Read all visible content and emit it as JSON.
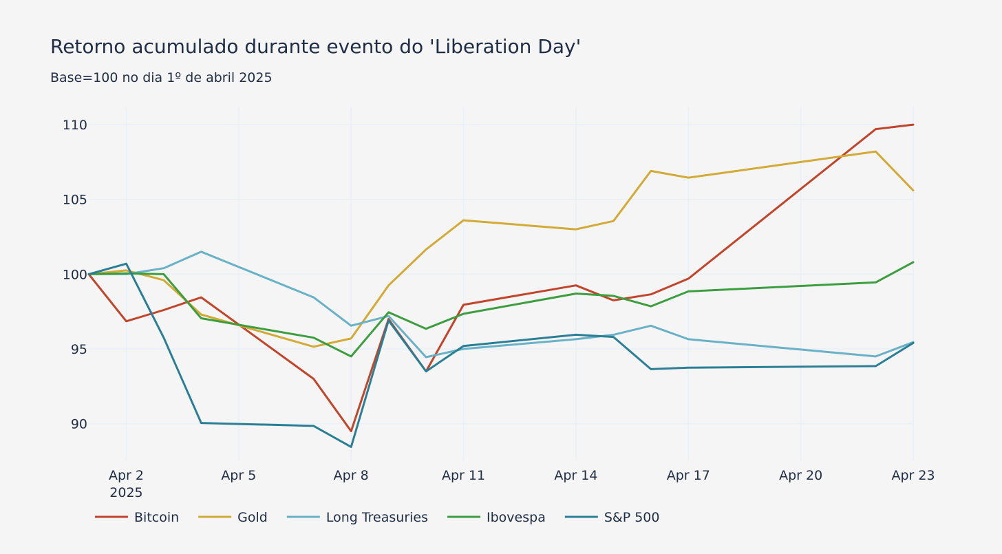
{
  "page": {
    "background": "#f5f5f5",
    "grid_color": "#eaf0f8",
    "text_color": "#1f2d45"
  },
  "chart_data": {
    "type": "line",
    "title": "Retorno acumulado durante evento do 'Liberation Day'",
    "subtitle": "Base=100 no dia 1º de abril 2025",
    "xlabel": "",
    "ylabel": "",
    "x_axis": {
      "type": "date",
      "range": [
        "2025-04-01",
        "2025-04-23"
      ],
      "ticks": [
        {
          "date": "2025-04-02",
          "label": "Apr 2",
          "sublabel": "2025"
        },
        {
          "date": "2025-04-05",
          "label": "Apr 5"
        },
        {
          "date": "2025-04-08",
          "label": "Apr 8"
        },
        {
          "date": "2025-04-11",
          "label": "Apr 11"
        },
        {
          "date": "2025-04-14",
          "label": "Apr 14"
        },
        {
          "date": "2025-04-17",
          "label": "Apr 17"
        },
        {
          "date": "2025-04-20",
          "label": "Apr 20"
        },
        {
          "date": "2025-04-23",
          "label": "Apr 23"
        }
      ]
    },
    "y_axis": {
      "range": [
        87.5,
        111.2
      ],
      "ticks": [
        90,
        95,
        100,
        105,
        110
      ]
    },
    "grid": true,
    "legend": "bottom-left",
    "series": [
      {
        "name": "Bitcoin",
        "color": "#c0452b",
        "points": [
          [
            "2025-04-01",
            100.0
          ],
          [
            "2025-04-02",
            96.85
          ],
          [
            "2025-04-03",
            97.6
          ],
          [
            "2025-04-04",
            98.45
          ],
          [
            "2025-04-07",
            93.0
          ],
          [
            "2025-04-08",
            89.5
          ],
          [
            "2025-04-09",
            97.0
          ],
          [
            "2025-04-10",
            93.5
          ],
          [
            "2025-04-11",
            97.95
          ],
          [
            "2025-04-14",
            99.25
          ],
          [
            "2025-04-15",
            98.25
          ],
          [
            "2025-04-16",
            98.65
          ],
          [
            "2025-04-17",
            99.7
          ],
          [
            "2025-04-22",
            109.7
          ],
          [
            "2025-04-23",
            110.0
          ]
        ]
      },
      {
        "name": "Gold",
        "color": "#d2aa36",
        "points": [
          [
            "2025-04-01",
            100.0
          ],
          [
            "2025-04-02",
            100.25
          ],
          [
            "2025-04-03",
            99.6
          ],
          [
            "2025-04-04",
            97.3
          ],
          [
            "2025-04-07",
            95.15
          ],
          [
            "2025-04-08",
            95.7
          ],
          [
            "2025-04-09",
            99.25
          ],
          [
            "2025-04-10",
            101.65
          ],
          [
            "2025-04-11",
            103.6
          ],
          [
            "2025-04-14",
            103.0
          ],
          [
            "2025-04-15",
            103.55
          ],
          [
            "2025-04-16",
            106.9
          ],
          [
            "2025-04-17",
            106.45
          ],
          [
            "2025-04-22",
            108.2
          ],
          [
            "2025-04-23",
            105.6
          ]
        ]
      },
      {
        "name": "Long Treasuries",
        "color": "#68b1c6",
        "points": [
          [
            "2025-04-01",
            100.0
          ],
          [
            "2025-04-02",
            100.0
          ],
          [
            "2025-04-03",
            100.4
          ],
          [
            "2025-04-04",
            101.5
          ],
          [
            "2025-04-07",
            98.45
          ],
          [
            "2025-04-08",
            96.55
          ],
          [
            "2025-04-09",
            97.2
          ],
          [
            "2025-04-10",
            94.45
          ],
          [
            "2025-04-11",
            95.0
          ],
          [
            "2025-04-14",
            95.65
          ],
          [
            "2025-04-15",
            95.95
          ],
          [
            "2025-04-16",
            96.55
          ],
          [
            "2025-04-17",
            95.65
          ],
          [
            "2025-04-22",
            94.5
          ],
          [
            "2025-04-23",
            95.45
          ]
        ]
      },
      {
        "name": "Ibovespa",
        "color": "#3d9e3f",
        "points": [
          [
            "2025-04-01",
            100.0
          ],
          [
            "2025-04-02",
            100.05
          ],
          [
            "2025-04-03",
            100.0
          ],
          [
            "2025-04-04",
            97.05
          ],
          [
            "2025-04-07",
            95.75
          ],
          [
            "2025-04-08",
            94.5
          ],
          [
            "2025-04-09",
            97.45
          ],
          [
            "2025-04-10",
            96.35
          ],
          [
            "2025-04-11",
            97.35
          ],
          [
            "2025-04-14",
            98.7
          ],
          [
            "2025-04-15",
            98.55
          ],
          [
            "2025-04-16",
            97.85
          ],
          [
            "2025-04-17",
            98.85
          ],
          [
            "2025-04-22",
            99.45
          ],
          [
            "2025-04-23",
            100.8
          ]
        ]
      },
      {
        "name": "S&P 500",
        "color": "#2a7f95",
        "points": [
          [
            "2025-04-01",
            100.0
          ],
          [
            "2025-04-02",
            100.7
          ],
          [
            "2025-04-03",
            95.75
          ],
          [
            "2025-04-04",
            90.05
          ],
          [
            "2025-04-07",
            89.85
          ],
          [
            "2025-04-08",
            88.45
          ],
          [
            "2025-04-09",
            96.9
          ],
          [
            "2025-04-10",
            93.5
          ],
          [
            "2025-04-11",
            95.2
          ],
          [
            "2025-04-14",
            95.95
          ],
          [
            "2025-04-15",
            95.8
          ],
          [
            "2025-04-16",
            93.65
          ],
          [
            "2025-04-17",
            93.75
          ],
          [
            "2025-04-22",
            93.85
          ],
          [
            "2025-04-23",
            95.4
          ]
        ]
      }
    ]
  }
}
